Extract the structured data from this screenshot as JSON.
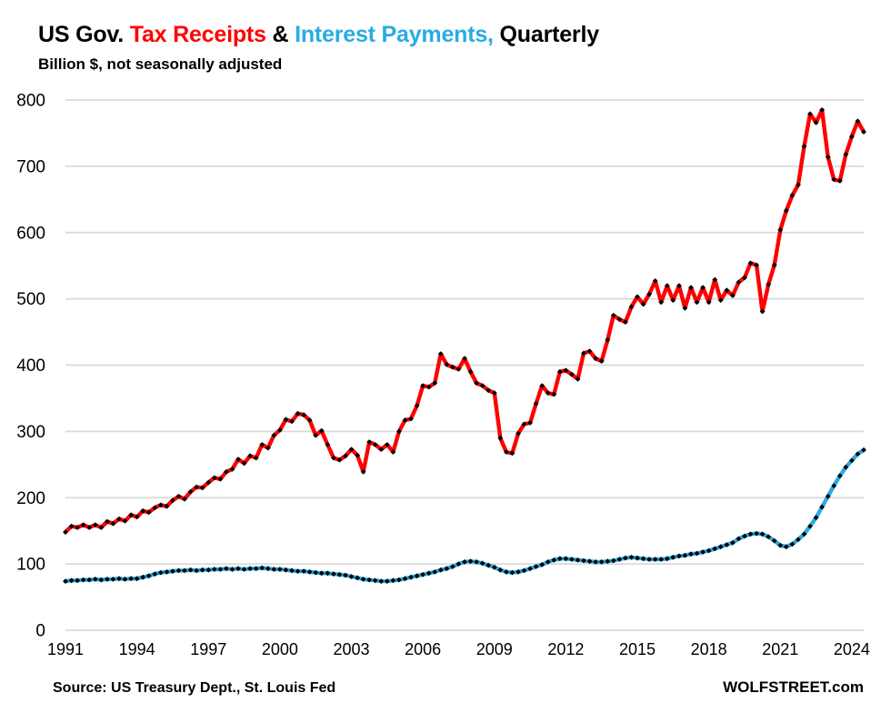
{
  "header": {
    "title_parts": [
      {
        "text": "US Gov. ",
        "color": "#000000"
      },
      {
        "text": "Tax Receipts",
        "color": "#ff0000"
      },
      {
        "text": " & ",
        "color": "#000000"
      },
      {
        "text": "Interest Payments,",
        "color": "#29abe2"
      },
      {
        "text": " Quarterly",
        "color": "#000000"
      }
    ],
    "subtitle": "Billion $, not seasonally adjusted"
  },
  "footer": {
    "source": "Source: US Treasury Dept., St. Louis Fed",
    "branding": "WOLFSTREET.com"
  },
  "colors": {
    "tax_receipts": "#ff0000",
    "interest_payments": "#29abe2",
    "marker": "#000000",
    "gridline": "#d9d9d9",
    "text": "#000000"
  },
  "chart_data": {
    "type": "line",
    "title": "US Gov. Tax Receipts & Interest Payments, Quarterly",
    "subtitle": "Billion $, not seasonally adjusted",
    "xlabel": "",
    "ylabel": "Billion $",
    "x_start": "1991 Q1",
    "x_end": "2024 Q3",
    "points_per_year": 4,
    "x_tick_labels": [
      "1991",
      "1994",
      "1997",
      "2000",
      "2003",
      "2006",
      "2009",
      "2012",
      "2015",
      "2018",
      "2021",
      "2024"
    ],
    "x_ticks_every_n_points": 12,
    "y_ticks": [
      0,
      100,
      200,
      300,
      400,
      500,
      600,
      700,
      800
    ],
    "ylim": [
      0,
      800
    ],
    "grid": "horizontal-only",
    "legend_position": "colored-words-in-title",
    "marker_style": "black-diamond-every-quarter",
    "series": [
      {
        "name": "Tax Receipts",
        "color": "#ff0000",
        "values": [
          148,
          157,
          155,
          159,
          155,
          159,
          155,
          164,
          161,
          168,
          165,
          174,
          171,
          180,
          178,
          185,
          189,
          187,
          196,
          202,
          198,
          209,
          216,
          215,
          223,
          230,
          228,
          239,
          243,
          258,
          252,
          263,
          260,
          280,
          275,
          294,
          302,
          318,
          315,
          327,
          325,
          317,
          294,
          301,
          280,
          260,
          257,
          263,
          273,
          264,
          239,
          284,
          280,
          273,
          280,
          269,
          300,
          317,
          319,
          339,
          369,
          367,
          373,
          417,
          401,
          397,
          394,
          410,
          390,
          373,
          369,
          362,
          358,
          290,
          269,
          267,
          297,
          311,
          313,
          342,
          369,
          358,
          356,
          390,
          392,
          386,
          379,
          418,
          421,
          410,
          406,
          438,
          475,
          469,
          465,
          488,
          503,
          492,
          507,
          527,
          495,
          520,
          498,
          520,
          486,
          517,
          495,
          517,
          495,
          529,
          498,
          513,
          505,
          525,
          532,
          554,
          551,
          481,
          522,
          551,
          604,
          633,
          656,
          672,
          730,
          779,
          766,
          785,
          714,
          680,
          678,
          718,
          745,
          768,
          752
        ]
      },
      {
        "name": "Interest Payments",
        "color": "#29abe2",
        "values": [
          74,
          75,
          75,
          76,
          76,
          77,
          76,
          77,
          77,
          78,
          77,
          78,
          78,
          80,
          82,
          85,
          87,
          88,
          89,
          90,
          90,
          91,
          90,
          91,
          91,
          92,
          92,
          93,
          92,
          93,
          92,
          93,
          93,
          94,
          93,
          92,
          92,
          91,
          90,
          89,
          89,
          88,
          87,
          86,
          86,
          85,
          84,
          83,
          81,
          79,
          77,
          76,
          75,
          74,
          74,
          75,
          76,
          78,
          80,
          82,
          84,
          86,
          88,
          91,
          93,
          96,
          100,
          103,
          104,
          103,
          101,
          98,
          95,
          91,
          88,
          87,
          88,
          90,
          93,
          96,
          99,
          103,
          106,
          108,
          108,
          107,
          106,
          105,
          104,
          103,
          103,
          104,
          105,
          107,
          109,
          110,
          109,
          108,
          107,
          107,
          107,
          108,
          110,
          112,
          113,
          115,
          116,
          118,
          120,
          123,
          126,
          129,
          132,
          138,
          142,
          145,
          146,
          145,
          141,
          135,
          128,
          126,
          130,
          137,
          145,
          157,
          170,
          186,
          202,
          218,
          233,
          246,
          256,
          266,
          272
        ]
      }
    ]
  }
}
